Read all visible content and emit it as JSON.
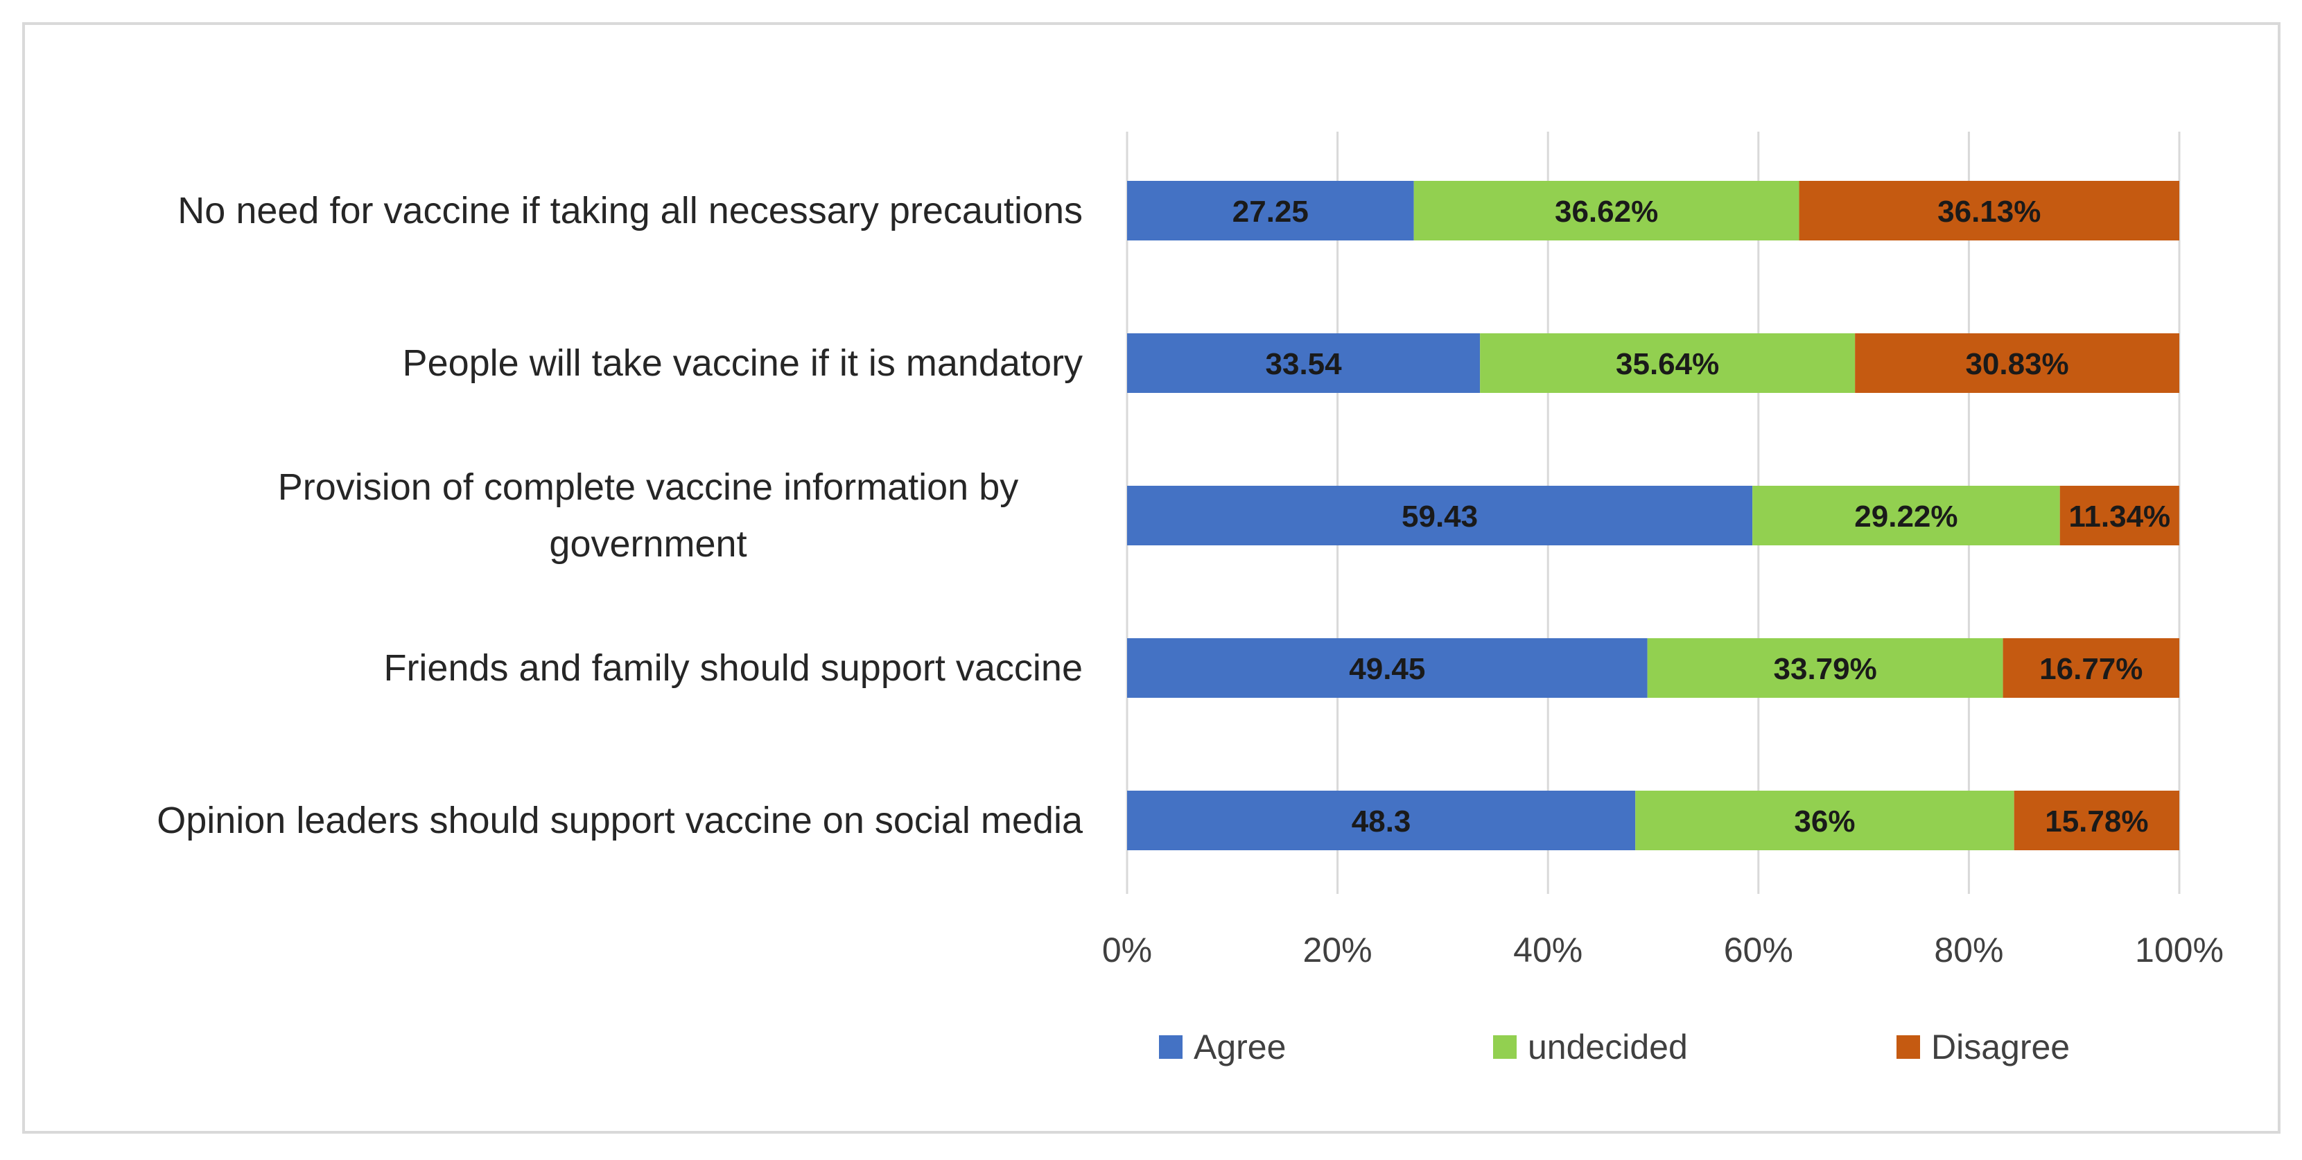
{
  "chart_data": {
    "type": "bar",
    "orientation": "horizontal",
    "stacked": "percent",
    "categories": [
      "No need for vaccine if taking all necessary precautions",
      "People will take vaccine if it is mandatory",
      "Provision of complete vaccine information by government",
      "Friends and family should support vaccine",
      "Opinion leaders should support vaccine on social media"
    ],
    "category_lines": [
      [
        "No need for vaccine if taking all necessary precautions"
      ],
      [
        "People will take vaccine if it is mandatory"
      ],
      [
        "Provision of complete vaccine information by",
        "government"
      ],
      [
        "Friends and family should support vaccine"
      ],
      [
        "Opinion leaders should support vaccine on social media"
      ]
    ],
    "series": [
      {
        "name": "Agree",
        "color": "#4472C4",
        "values": [
          27.25,
          33.54,
          59.43,
          49.45,
          48.3
        ],
        "labels": [
          "27.25",
          "33.54",
          "59.43",
          "49.45",
          "48.3"
        ]
      },
      {
        "name": "undecided",
        "color": "#92D050",
        "values": [
          36.62,
          35.64,
          29.22,
          33.79,
          36
        ],
        "labels": [
          "36.62%",
          "35.64%",
          "29.22%",
          "33.79%",
          "36%"
        ]
      },
      {
        "name": "Disagree",
        "color": "#C55A11",
        "values": [
          36.13,
          30.83,
          11.34,
          16.77,
          15.78
        ],
        "labels": [
          "36.13%",
          "30.83%",
          "11.34%",
          "16.77%",
          "15.78%"
        ]
      }
    ],
    "x_ticks": [
      "0%",
      "20%",
      "40%",
      "60%",
      "80%",
      "100%"
    ],
    "xlim": [
      0,
      100
    ],
    "grid": true,
    "legend_position": "bottom",
    "title": "",
    "xlabel": "",
    "ylabel": ""
  }
}
